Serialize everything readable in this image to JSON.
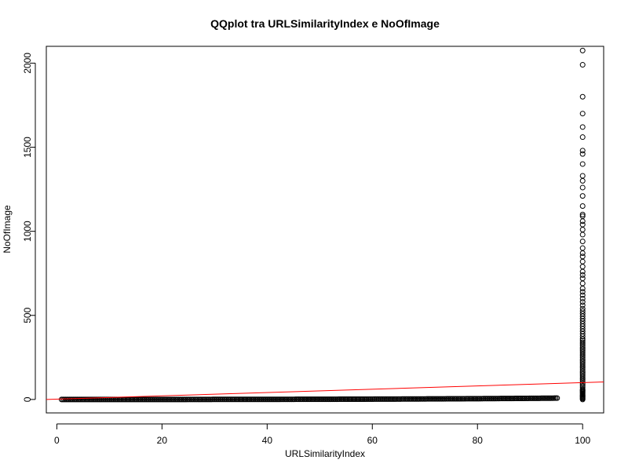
{
  "chart_data": {
    "type": "scatter",
    "title": "QQplot tra URLSimilarityIndex e NoOfImage",
    "xlabel": "URLSimilarityIndex",
    "ylabel": "NoOfImage",
    "xlim": [
      -2,
      104
    ],
    "ylim": [
      -80,
      2100
    ],
    "xticks": [
      0,
      20,
      40,
      60,
      80,
      100
    ],
    "yticks": [
      0,
      500,
      1000,
      1500,
      2000
    ],
    "grid": false,
    "marker": "open-circle",
    "point_color": "#000000",
    "line_color": "#ff0000",
    "reference_line": {
      "x": [
        -2,
        104
      ],
      "y": [
        0,
        104
      ]
    },
    "flat_band": {
      "x_start": 0.9,
      "x_end": 95.3,
      "y_start": 0,
      "y_end": 8
    },
    "column_x": 100,
    "column_y": [
      0,
      5,
      10,
      15,
      20,
      25,
      30,
      35,
      40,
      45,
      50,
      55,
      60,
      70,
      80,
      90,
      100,
      110,
      120,
      130,
      140,
      150,
      160,
      170,
      180,
      190,
      200,
      210,
      220,
      230,
      240,
      250,
      260,
      270,
      280,
      290,
      300,
      310,
      320,
      330,
      340,
      350,
      360,
      375,
      390,
      405,
      420,
      435,
      450,
      465,
      480,
      495,
      510,
      525,
      540,
      560,
      580,
      600,
      620,
      640,
      660,
      690,
      720,
      740,
      760,
      790,
      820,
      850,
      870,
      900,
      940,
      980,
      1010,
      1040,
      1060,
      1090,
      1100,
      1150,
      1210,
      1260,
      1300,
      1330,
      1400,
      1460,
      1480,
      1560,
      1620,
      1700,
      1800,
      1990,
      2075
    ]
  }
}
